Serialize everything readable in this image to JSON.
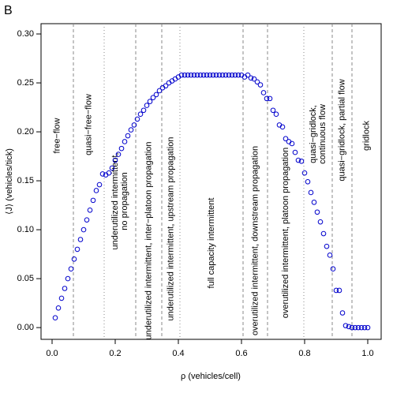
{
  "chart_data": {
    "type": "scatter",
    "title": "B",
    "x_label": "ρ (vehicles/cell)",
    "y_label": "⟨J⟩ (vehicles/tick)",
    "xlim": [
      -0.035,
      1.0425
    ],
    "ylim": [
      -0.012,
      0.3105
    ],
    "xticks": [
      {
        "value": 0,
        "label": "0.0"
      },
      {
        "value": 0.2,
        "label": "0.2"
      },
      {
        "value": 0.4,
        "label": "0.4"
      },
      {
        "value": 0.6,
        "label": "0.6"
      },
      {
        "value": 0.8,
        "label": "0.8"
      },
      {
        "value": 1,
        "label": "1.0"
      }
    ],
    "yticks": [
      {
        "value": 0,
        "label": "0.00"
      },
      {
        "value": 0.05,
        "label": "0.05"
      },
      {
        "value": 0.1,
        "label": "0.10"
      },
      {
        "value": 0.15,
        "label": "0.15"
      },
      {
        "value": 0.2,
        "label": "0.20"
      },
      {
        "value": 0.25,
        "label": "0.25"
      },
      {
        "value": 0.3,
        "label": "0.30"
      }
    ],
    "color": "#0000cc",
    "boundaries": [
      0.0675,
      0.165,
      0.265,
      0.3475,
      0.405,
      0.605,
      0.6825,
      0.7975,
      0.8875,
      0.95
    ],
    "regions": [
      [
        "free−flow"
      ],
      [
        "quasi−free−flow"
      ],
      [
        "underutilized intermittent,",
        "no propagation"
      ],
      [
        "underutilized intermittent, inter−platoon propagation"
      ],
      [
        "underutilized intermittent, upstream propagation"
      ],
      [
        "full capacity intermittent"
      ],
      [
        "overutilized intermittent, downstream propagation"
      ],
      [
        "overutilized intermittent, platoon propagation"
      ],
      [
        "quasi−gridlock,",
        "continuous flow"
      ],
      [
        "quasi−gridlock, partial flow"
      ],
      [
        "gridlock"
      ]
    ],
    "x": [
      0.01,
      0.02,
      0.03,
      0.04,
      0.05,
      0.06,
      0.07,
      0.08,
      0.09,
      0.1,
      0.11,
      0.12,
      0.13,
      0.14,
      0.15,
      0.16,
      0.17,
      0.18,
      0.19,
      0.2,
      0.21,
      0.22,
      0.23,
      0.24,
      0.25,
      0.26,
      0.27,
      0.28,
      0.29,
      0.3,
      0.31,
      0.32,
      0.33,
      0.34,
      0.35,
      0.36,
      0.37,
      0.38,
      0.39,
      0.4,
      0.41,
      0.42,
      0.43,
      0.44,
      0.45,
      0.46,
      0.47,
      0.48,
      0.49,
      0.5,
      0.51,
      0.52,
      0.53,
      0.54,
      0.55,
      0.56,
      0.57,
      0.58,
      0.59,
      0.6,
      0.61,
      0.62,
      0.63,
      0.64,
      0.65,
      0.66,
      0.67,
      0.68,
      0.69,
      0.7,
      0.71,
      0.72,
      0.73,
      0.74,
      0.75,
      0.76,
      0.77,
      0.78,
      0.79,
      0.8,
      0.81,
      0.82,
      0.83,
      0.84,
      0.85,
      0.86,
      0.87,
      0.88,
      0.89,
      0.9,
      0.91,
      0.92,
      0.93,
      0.94,
      0.95,
      0.96,
      0.97,
      0.98,
      0.99,
      1.0
    ],
    "values": [
      0.01,
      0.02,
      0.03,
      0.04,
      0.05,
      0.06,
      0.07,
      0.08,
      0.09,
      0.1,
      0.11,
      0.12,
      0.13,
      0.14,
      0.146,
      0.157,
      0.156,
      0.158,
      0.163,
      0.171,
      0.177,
      0.183,
      0.19,
      0.196,
      0.202,
      0.207,
      0.213,
      0.218,
      0.222,
      0.227,
      0.231,
      0.235,
      0.238,
      0.242,
      0.245,
      0.247,
      0.25,
      0.252,
      0.254,
      0.256,
      0.258,
      0.258,
      0.258,
      0.258,
      0.258,
      0.258,
      0.258,
      0.258,
      0.258,
      0.258,
      0.258,
      0.258,
      0.258,
      0.258,
      0.258,
      0.258,
      0.258,
      0.258,
      0.258,
      0.258,
      0.256,
      0.258,
      0.255,
      0.254,
      0.251,
      0.248,
      0.24,
      0.234,
      0.234,
      0.222,
      0.218,
      0.207,
      0.205,
      0.193,
      0.19,
      0.188,
      0.179,
      0.171,
      0.17,
      0.158,
      0.149,
      0.138,
      0.128,
      0.118,
      0.108,
      0.096,
      0.083,
      0.074,
      0.06,
      0.038,
      0.038,
      0.015,
      0.002,
      0.001,
      0,
      0,
      0,
      0,
      0,
      0
    ]
  }
}
